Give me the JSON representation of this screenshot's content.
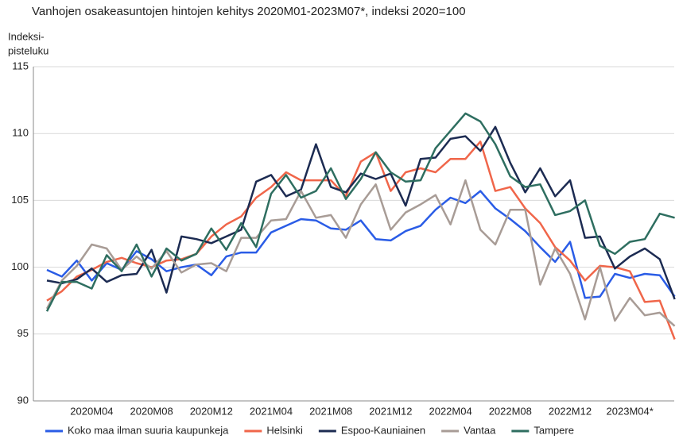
{
  "chart_data": {
    "type": "line",
    "title": "Vanhojen osakeasuntojen hintojen kehitys 2020M01-2023M07*, indeksi 2020=100",
    "y_label": [
      "Indeksi-",
      "pisteluku"
    ],
    "categories": [
      null,
      null,
      null,
      "2020M04",
      null,
      null,
      null,
      "2020M08",
      null,
      null,
      null,
      "2020M12",
      null,
      null,
      null,
      "2021M04",
      null,
      null,
      null,
      "2021M08",
      null,
      null,
      null,
      "2021M12",
      null,
      null,
      null,
      "2022M04",
      null,
      null,
      null,
      "2022M08",
      null,
      null,
      null,
      "2022M12",
      null,
      null,
      null,
      "2023M04*",
      null,
      null,
      null
    ],
    "ylim": [
      90,
      115
    ],
    "yticks": [
      90,
      95,
      100,
      105,
      110,
      115
    ],
    "grid": true,
    "series": [
      {
        "name": "Koko maa ilman suuria kaupunkeja",
        "color": "#2a5ce6",
        "values": [
          99.8,
          99.3,
          100.5,
          99.0,
          100.3,
          99.8,
          101.2,
          100.6,
          99.7,
          100.0,
          100.2,
          99.4,
          100.8,
          101.1,
          101.1,
          102.6,
          103.1,
          103.6,
          103.5,
          102.9,
          102.8,
          103.5,
          102.1,
          102.0,
          102.7,
          103.1,
          104.3,
          105.2,
          104.8,
          105.7,
          104.4,
          103.6,
          102.7,
          101.5,
          100.4,
          101.9,
          97.7,
          97.8,
          99.5,
          99.2,
          99.5,
          99.4,
          97.8
        ]
      },
      {
        "name": "Helsinki",
        "color": "#f0664a",
        "values": [
          97.5,
          98.2,
          99.3,
          99.8,
          100.4,
          100.7,
          100.3,
          100.0,
          100.5,
          100.6,
          101.0,
          102.3,
          103.2,
          103.8,
          105.2,
          106.0,
          107.1,
          106.5,
          106.5,
          106.5,
          105.3,
          107.9,
          108.6,
          105.7,
          107.1,
          107.4,
          107.1,
          108.1,
          108.1,
          109.4,
          105.7,
          106.0,
          104.4,
          103.3,
          101.5,
          100.5,
          99.0,
          100.1,
          100.0,
          99.7,
          97.4,
          97.5,
          94.6
        ]
      },
      {
        "name": "Espoo-Kauniainen",
        "color": "#1c2b52",
        "values": [
          99.0,
          98.8,
          99.1,
          99.9,
          98.9,
          99.4,
          99.5,
          101.3,
          98.1,
          102.3,
          102.1,
          101.8,
          102.3,
          102.8,
          106.4,
          106.9,
          105.3,
          105.8,
          109.2,
          106.0,
          105.6,
          107.0,
          106.6,
          107.0,
          104.6,
          108.1,
          108.2,
          109.6,
          109.8,
          108.7,
          110.5,
          107.8,
          105.6,
          107.4,
          105.3,
          106.5,
          102.2,
          102.3,
          99.9,
          100.8,
          101.4,
          100.6,
          97.6
        ]
      },
      {
        "name": "Vantaa",
        "color": "#a89c96",
        "values": [
          96.9,
          99.0,
          100.1,
          101.7,
          101.4,
          99.8,
          100.8,
          99.9,
          101.2,
          99.6,
          100.2,
          100.3,
          99.7,
          102.2,
          102.2,
          103.5,
          103.6,
          105.7,
          103.7,
          103.9,
          102.2,
          104.7,
          106.2,
          102.8,
          104.1,
          104.7,
          105.4,
          103.2,
          106.5,
          102.8,
          101.7,
          104.3,
          104.3,
          98.7,
          101.4,
          99.5,
          96.1,
          100.0,
          96.0,
          97.7,
          96.4,
          96.6,
          95.6
        ]
      },
      {
        "name": "Tampere",
        "color": "#2e6e60",
        "values": [
          96.7,
          98.9,
          98.9,
          98.4,
          100.9,
          99.7,
          101.7,
          99.3,
          101.4,
          100.5,
          101.0,
          102.9,
          101.3,
          103.3,
          101.5,
          105.5,
          106.9,
          105.2,
          105.7,
          107.4,
          105.1,
          106.6,
          108.6,
          107.1,
          106.4,
          106.5,
          108.9,
          110.2,
          111.5,
          110.9,
          109.2,
          106.8,
          106.0,
          106.2,
          103.9,
          104.2,
          105.0,
          101.6,
          101.0,
          101.9,
          102.1,
          104.0,
          103.7
        ]
      }
    ]
  }
}
